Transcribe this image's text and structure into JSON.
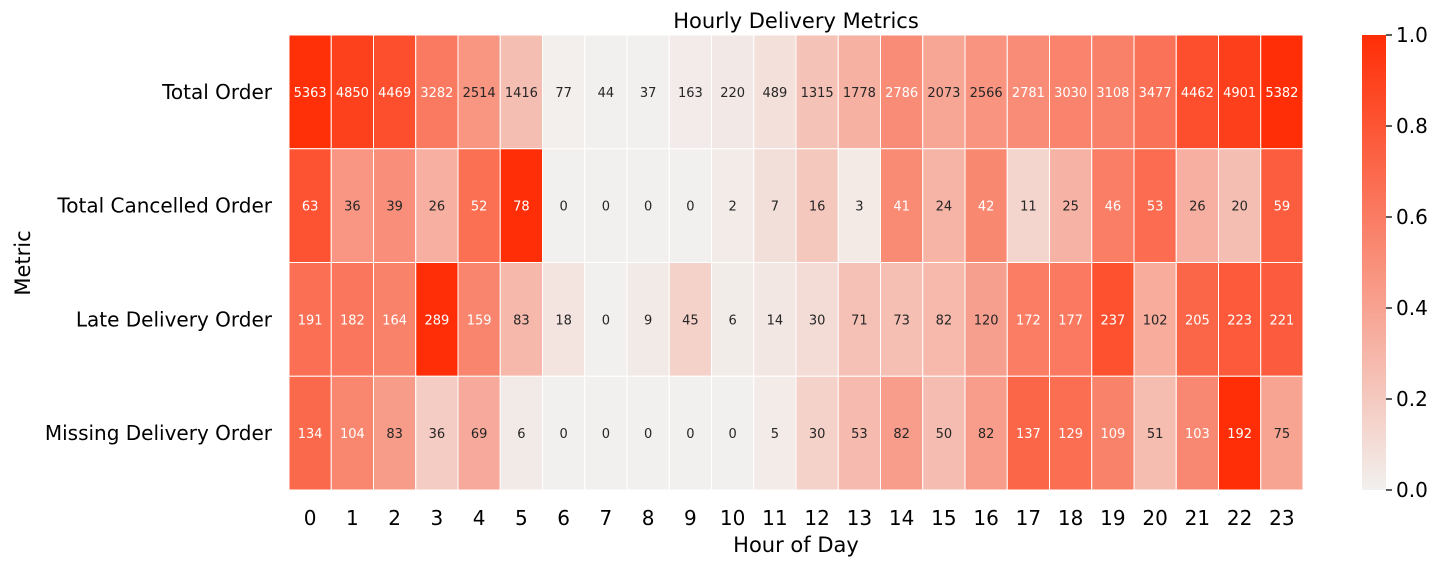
{
  "chart_data": {
    "type": "heatmap",
    "title": "Hourly Delivery Metrics",
    "xlabel": "Hour of Day",
    "ylabel": "Metric",
    "x_categories": [
      "0",
      "1",
      "2",
      "3",
      "4",
      "5",
      "6",
      "7",
      "8",
      "9",
      "10",
      "11",
      "12",
      "13",
      "14",
      "15",
      "16",
      "17",
      "18",
      "19",
      "20",
      "21",
      "22",
      "23"
    ],
    "y_categories": [
      "Total Order",
      "Total Cancelled Order",
      "Late Delivery Order",
      "Missing Delivery Order"
    ],
    "values": [
      [
        5363,
        4850,
        4469,
        3282,
        2514,
        1416,
        77,
        44,
        37,
        163,
        220,
        489,
        1315,
        1778,
        2786,
        2073,
        2566,
        2781,
        3030,
        3108,
        3477,
        4462,
        4901,
        5382
      ],
      [
        63,
        36,
        39,
        26,
        52,
        78,
        0,
        0,
        0,
        0,
        2,
        7,
        16,
        3,
        41,
        24,
        42,
        11,
        25,
        46,
        53,
        26,
        20,
        59
      ],
      [
        191,
        182,
        164,
        289,
        159,
        83,
        18,
        0,
        9,
        45,
        6,
        14,
        30,
        71,
        73,
        82,
        120,
        172,
        177,
        237,
        102,
        205,
        223,
        221
      ],
      [
        134,
        104,
        83,
        36,
        69,
        6,
        0,
        0,
        0,
        0,
        0,
        5,
        30,
        53,
        82,
        50,
        82,
        137,
        129,
        109,
        51,
        103,
        192,
        75
      ]
    ],
    "color_normalization": "per-row min-max",
    "colorbar": {
      "range": [
        0.0,
        1.0
      ],
      "ticks": [
        "0.0",
        "0.2",
        "0.4",
        "0.6",
        "0.8",
        "1.0"
      ]
    },
    "colors": {
      "low": "#f2f0ee",
      "high": "#ff2e06"
    },
    "grid": false
  }
}
